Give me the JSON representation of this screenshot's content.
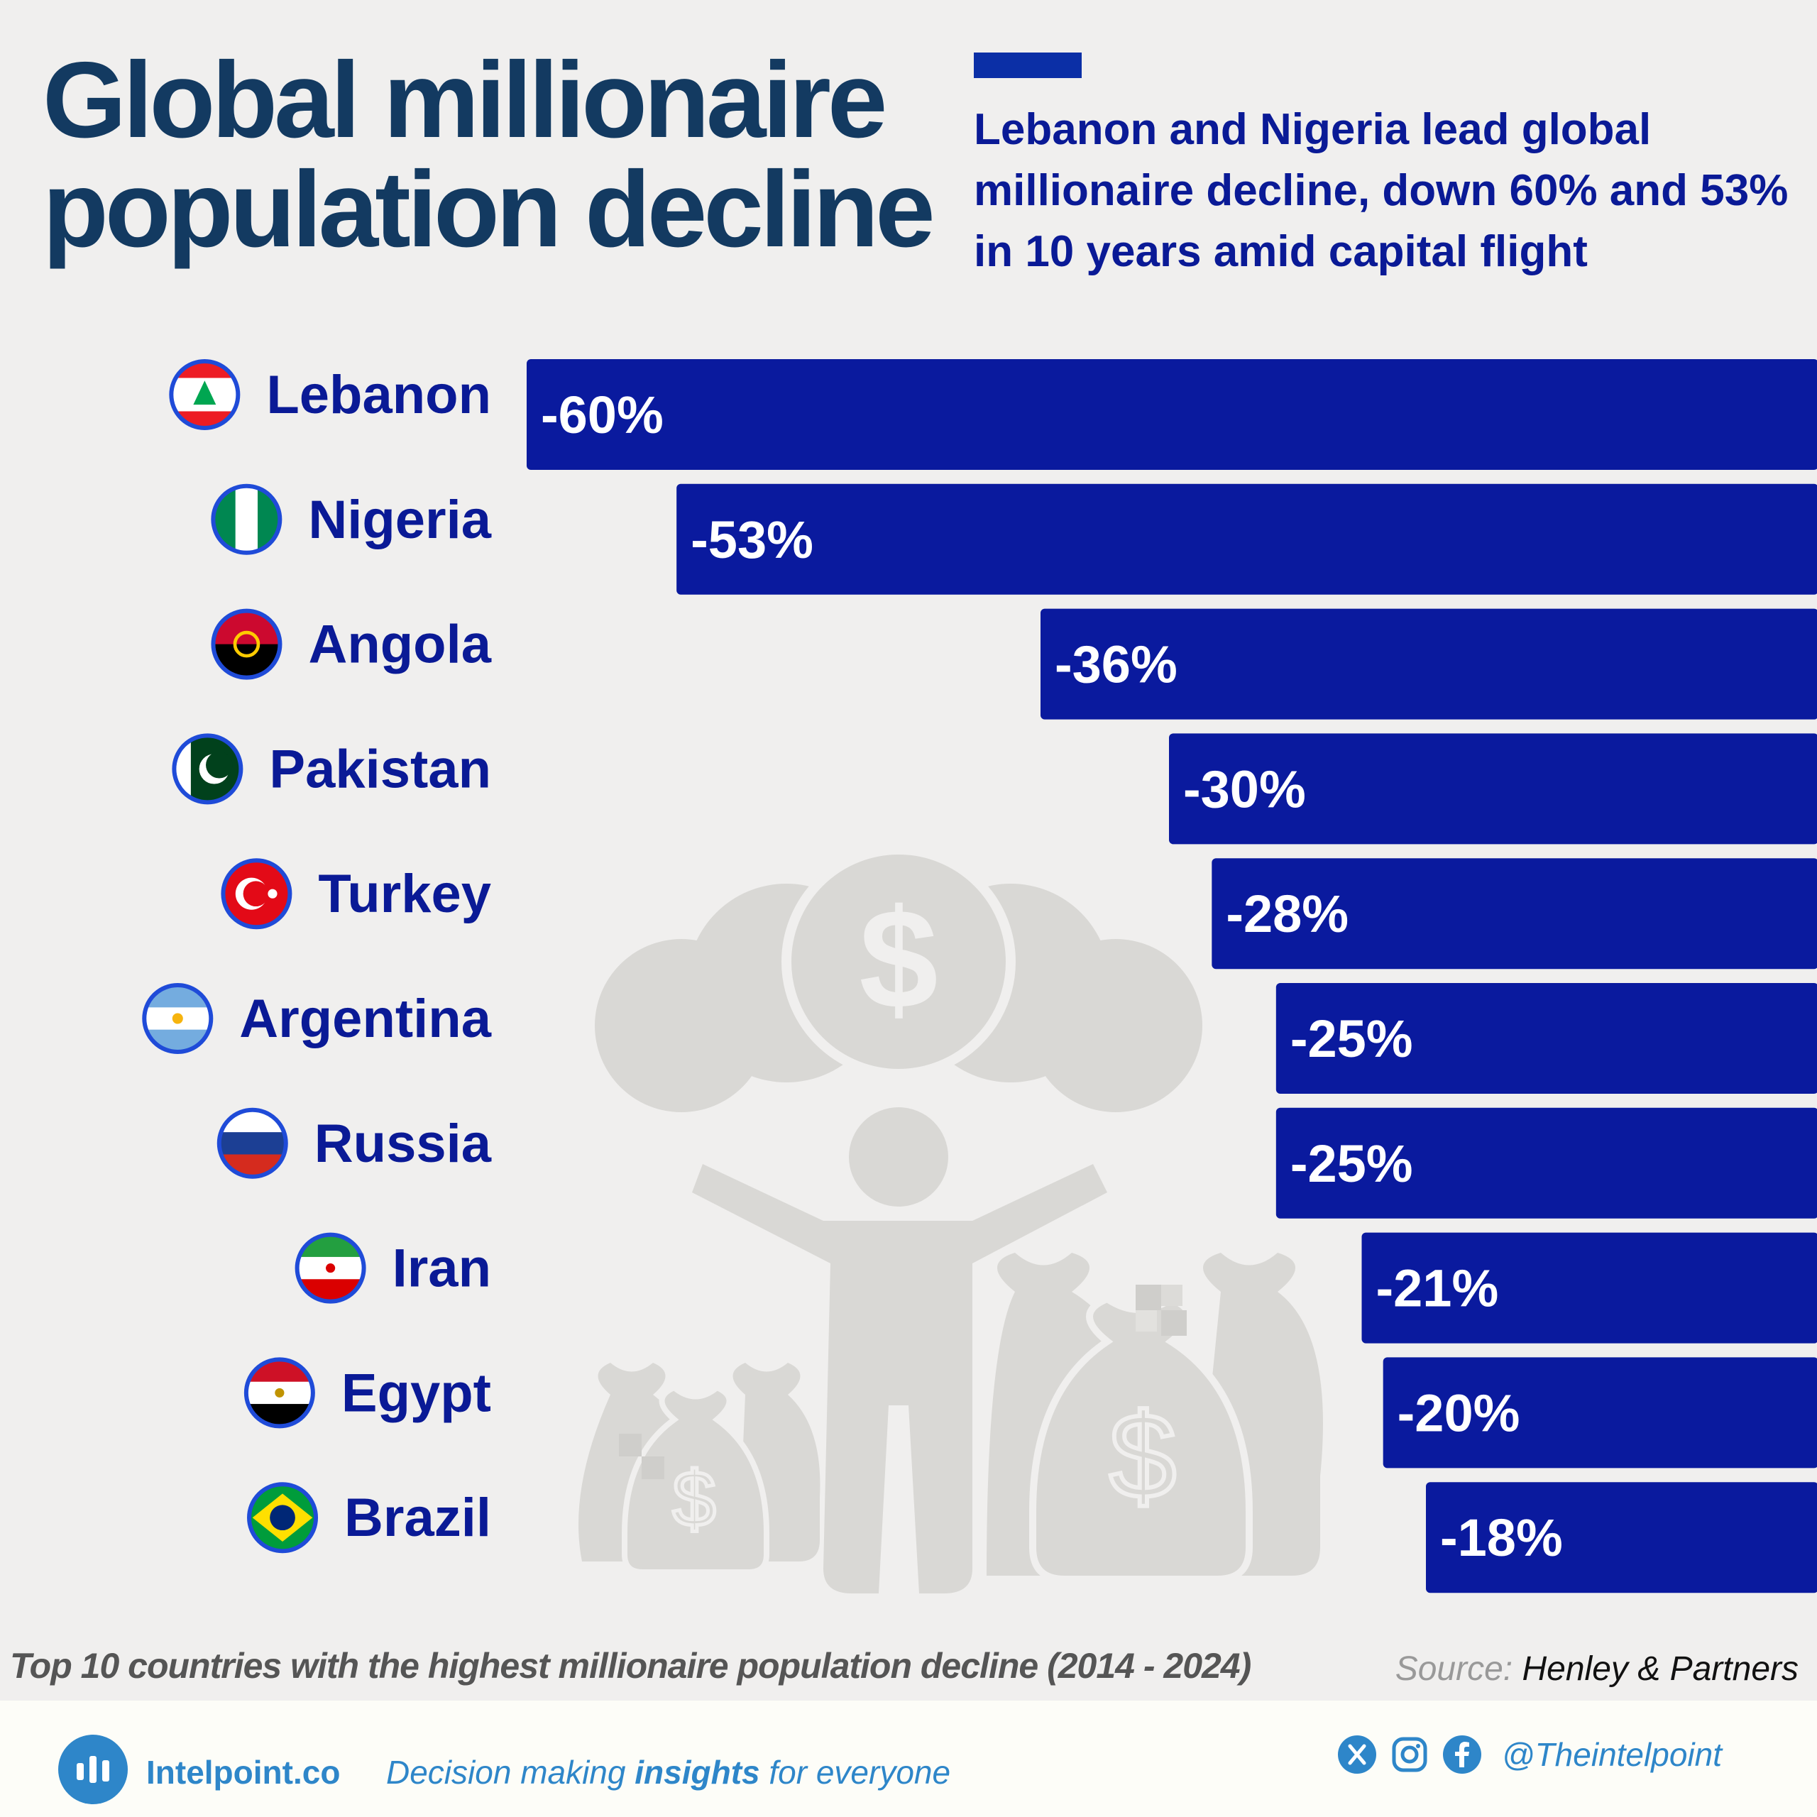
{
  "title": "Global millionaire population decline",
  "subtitle": "Lebanon and Nigeria lead global millionaire decline, down 60% and 53% in 10 years amid capital flight",
  "caption": "Top 10 countries with the highest millionaire population decline (2014 - 2024)",
  "source": {
    "label": "Source:",
    "value": "Henley & Partners"
  },
  "footer": {
    "brand": "Intelpoint.co",
    "tagline_pre": "Decision making ",
    "tagline_bold": "insights",
    "tagline_post": " for everyone",
    "handle": "@Theintelpoint",
    "social_icons": [
      "x-icon",
      "instagram-icon",
      "facebook-icon"
    ]
  },
  "colors": {
    "bar": "#0a1a9e",
    "title": "#133a61",
    "label": "#0a1a96",
    "accent": "#2e86c9"
  },
  "chart_data": {
    "type": "bar",
    "orientation": "horizontal",
    "categories": [
      "Lebanon",
      "Nigeria",
      "Angola",
      "Pakistan",
      "Turkey",
      "Argentina",
      "Russia",
      "Iran",
      "Egypt",
      "Brazil"
    ],
    "values": [
      -60,
      -53,
      -36,
      -30,
      -28,
      -25,
      -25,
      -21,
      -20,
      -18
    ],
    "labels": [
      "-60%",
      "-53%",
      "-36%",
      "-30%",
      "-28%",
      "-25%",
      "-25%",
      "-21%",
      "-20%",
      "-18%"
    ],
    "flag_icons": [
      "lebanon-flag",
      "nigeria-flag",
      "angola-flag",
      "pakistan-flag",
      "turkey-flag",
      "argentina-flag",
      "russia-flag",
      "iran-flag",
      "egypt-flag",
      "brazil-flag"
    ],
    "bars_anchored": "right",
    "grid": false,
    "legend": "none"
  }
}
